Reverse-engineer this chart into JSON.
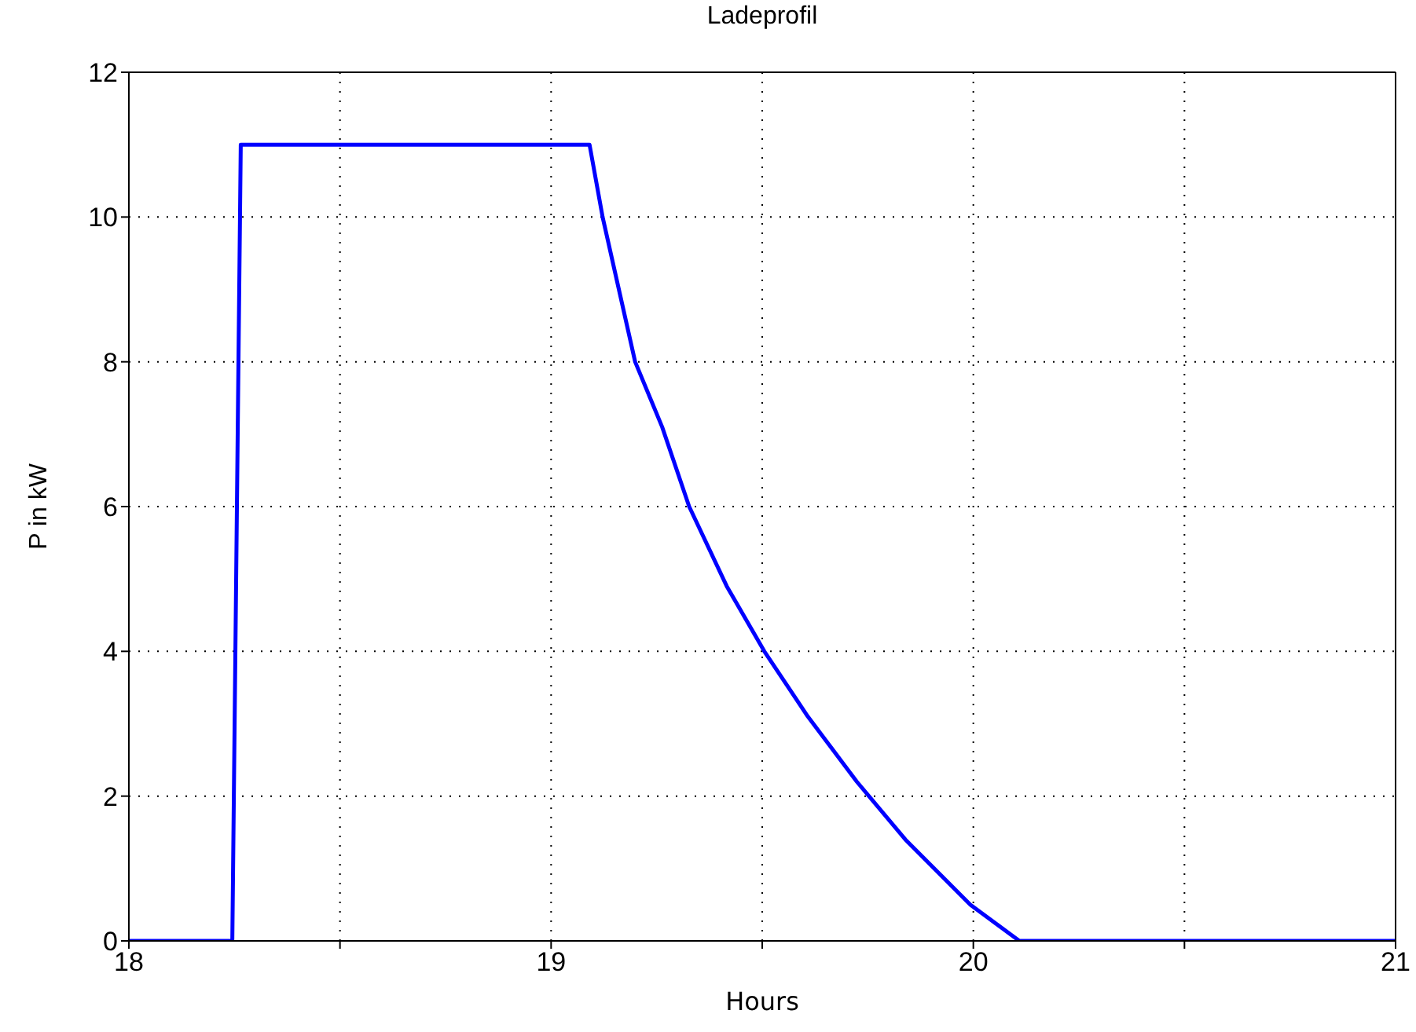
{
  "chart_data": {
    "type": "line",
    "title": "Ladeprofil",
    "xlabel": "Hours",
    "ylabel": "P in kW",
    "x": [
      18,
      18.245,
      18.265,
      19.091,
      19.122,
      19.199,
      19.263,
      19.327,
      19.416,
      19.505,
      19.608,
      19.724,
      19.839,
      19.993,
      20.109,
      21
    ],
    "series": [
      {
        "color": "#0000ff",
        "values": [
          0,
          0,
          11,
          11,
          10,
          8,
          7.1,
          6,
          4.9,
          4,
          3.1,
          2.2,
          1.4,
          0.5,
          0,
          0
        ]
      }
    ],
    "xlim": [
      18,
      21
    ],
    "xticks": [
      18,
      {
        "value": 18.5,
        "label": null
      },
      19,
      {
        "value": 19.5,
        "label": null
      },
      20,
      {
        "value": 20.5,
        "label": null
      },
      21
    ],
    "ylim": [
      0,
      12
    ],
    "yticks": [
      0,
      2,
      4,
      6,
      8,
      10,
      12
    ],
    "grid": true,
    "marker": "none",
    "line_style": "solid"
  }
}
